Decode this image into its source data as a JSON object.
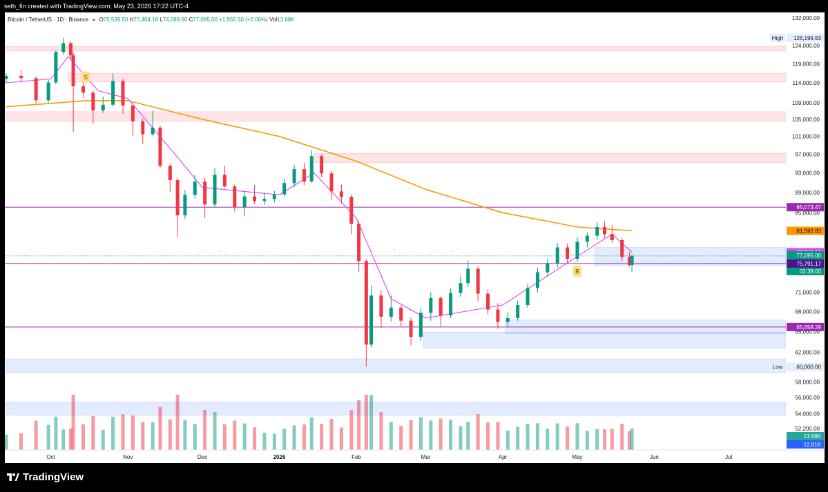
{
  "header": {
    "credit": "seth_fin created with TradingView.com, May 23, 2026 17:22 UTC-4"
  },
  "legend": {
    "symbol": "Bitcoin / TetherUS · 1D · Binance",
    "o_label": "O",
    "o": "75,539.50",
    "h_label": "H",
    "h": "77,404.18",
    "l_label": "L",
    "l": "74,289.60",
    "c_label": "C",
    "c": "77,095.00",
    "chg": "+1,555.50 (+2.06%)",
    "vol_label": "Vol",
    "vol": "13.68K"
  },
  "footer": {
    "brand": "TradingView"
  },
  "colors": {
    "up": "#089981",
    "down": "#f23645",
    "ma200": "#ff9800",
    "ma_fast": "#e040fb",
    "hline": "#9c27b0",
    "zone_red": "#f23645",
    "zone_blue": "#2962ff"
  },
  "chart_data": {
    "type": "candlestick",
    "symbol": "BTCUSDT",
    "interval": "1D",
    "y_axis_ticks": [
      132000,
      124000,
      119000,
      114000,
      109000,
      105000,
      101000,
      97000,
      93000,
      89000,
      85000,
      71000,
      68000,
      65000,
      62000,
      60000,
      58000,
      56000,
      54000,
      52200
    ],
    "y_axis_scale": "log",
    "x_axis_ticks": [
      {
        "label": "Oct",
        "date": "2025-10-01"
      },
      {
        "label": "Nov",
        "date": "2025-11-01"
      },
      {
        "label": "Dec",
        "date": "2025-12-01"
      },
      {
        "label": "2026",
        "date": "2026-01-01"
      },
      {
        "label": "Feb",
        "date": "2026-02-01"
      },
      {
        "label": "Mar",
        "date": "2026-03-01"
      },
      {
        "label": "Apr",
        "date": "2026-04-01"
      },
      {
        "label": "May",
        "date": "2026-05-01"
      },
      {
        "label": "Jun",
        "date": "2026-06-01"
      },
      {
        "label": "Jul",
        "date": "2026-07-01"
      }
    ],
    "price_labels": [
      {
        "text": "High",
        "value": 126199.63,
        "display": "126,199.63",
        "color": "#e3eefc",
        "fg": "#131722"
      },
      {
        "text": "",
        "value": 86073.47,
        "display": "86,073.47",
        "color": "#9c27b0",
        "fg": "#ffffff"
      },
      {
        "text": "",
        "value": 81592.83,
        "display": "81,592.83",
        "color": "#ff9800",
        "fg": "#000000"
      },
      {
        "text": "",
        "value": 77746.17,
        "display": "77,746.17",
        "color": "#e040fb",
        "fg": "#ffffff"
      },
      {
        "text": "",
        "value": 77095.0,
        "display": "77,095.00",
        "color": "#089981",
        "fg": "#ffffff"
      },
      {
        "text": "",
        "value": 77095.0,
        "display": "77,095.00",
        "color": "#089981",
        "fg": "#ffffff",
        "sub": "02:38:00"
      },
      {
        "text": "",
        "value": 75791.17,
        "display": "75,791.17",
        "color": "#4a148c",
        "fg": "#ffffff"
      },
      {
        "text": "",
        "value": 65658.29,
        "display": "65,658.29",
        "color": "#9c27b0",
        "fg": "#ffffff"
      },
      {
        "text": "Low",
        "value": 60000.0,
        "display": "60,000.00",
        "color": "#e3eefc",
        "fg": "#131722"
      }
    ],
    "volume_labels": [
      {
        "display": "13.68K",
        "color": "#26a69a"
      },
      {
        "display": "12.81K",
        "color": "#2962ff"
      }
    ],
    "horizontal_lines": [
      86073.47,
      75791.17,
      65658.29
    ],
    "zones": [
      {
        "color": "red",
        "start": "2025-09-13",
        "end": "2026-07-24",
        "low": 122500,
        "high": 123800
      },
      {
        "color": "red",
        "start": "2025-10-08",
        "end": "2026-07-24",
        "low": 114200,
        "high": 116500
      },
      {
        "color": "red",
        "start": "2025-09-13",
        "end": "2026-07-24",
        "low": 104500,
        "high": 106800
      },
      {
        "color": "red",
        "start": "2026-01-15",
        "end": "2026-07-24",
        "low": 95200,
        "high": 97200
      },
      {
        "color": "blue",
        "start": "2026-04-02",
        "end": "2026-07-24",
        "low": 64700,
        "high": 66700
      },
      {
        "color": "blue",
        "start": "2026-02-28",
        "end": "2026-07-24",
        "low": 62600,
        "high": 64900
      },
      {
        "color": "blue",
        "start": "2025-09-13",
        "end": "2026-07-24",
        "low": 59200,
        "high": 61100
      },
      {
        "color": "blue",
        "start": "2025-09-13",
        "end": "2026-07-24",
        "low": 53800,
        "high": 55400
      },
      {
        "color": "blue",
        "start": "2026-05-08",
        "end": "2026-07-24",
        "low": 75500,
        "high": 78600
      }
    ],
    "markers": [
      {
        "text": "S",
        "date": "2025-10-15",
        "value": 115500
      },
      {
        "text": "B",
        "date": "2026-05-01",
        "value": 74500
      }
    ],
    "ma_200": [
      {
        "date": "2025-09-13",
        "value": 108000
      },
      {
        "date": "2025-10-15",
        "value": 109500
      },
      {
        "date": "2025-11-01",
        "value": 109500
      },
      {
        "date": "2025-12-01",
        "value": 105000
      },
      {
        "date": "2026-01-01",
        "value": 101000
      },
      {
        "date": "2026-02-01",
        "value": 95500
      },
      {
        "date": "2026-03-01",
        "value": 89600
      },
      {
        "date": "2026-04-01",
        "value": 85000
      },
      {
        "date": "2026-05-01",
        "value": 82300
      },
      {
        "date": "2026-05-23",
        "value": 81592.83
      }
    ],
    "ma_fast": [
      {
        "date": "2025-09-13",
        "value": 114000
      },
      {
        "date": "2025-10-01",
        "value": 115000
      },
      {
        "date": "2025-10-08",
        "value": 121000
      },
      {
        "date": "2025-10-20",
        "value": 112000
      },
      {
        "date": "2025-11-01",
        "value": 110000
      },
      {
        "date": "2025-11-20",
        "value": 97000
      },
      {
        "date": "2025-12-01",
        "value": 90000
      },
      {
        "date": "2026-01-01",
        "value": 88500
      },
      {
        "date": "2026-01-15",
        "value": 93000
      },
      {
        "date": "2026-02-01",
        "value": 84000
      },
      {
        "date": "2026-02-15",
        "value": 70000
      },
      {
        "date": "2026-03-01",
        "value": 67000
      },
      {
        "date": "2026-04-01",
        "value": 69000
      },
      {
        "date": "2026-05-01",
        "value": 77000
      },
      {
        "date": "2026-05-15",
        "value": 81000
      },
      {
        "date": "2026-05-23",
        "value": 77746.17
      }
    ],
    "candles": [
      {
        "date": "2025-09-13",
        "open": 115000,
        "high": 116500,
        "low": 113800,
        "close": 115800
      },
      {
        "date": "2025-09-19",
        "open": 115800,
        "high": 117400,
        "low": 114200,
        "close": 115200
      },
      {
        "date": "2025-09-25",
        "open": 115200,
        "high": 115600,
        "low": 108800,
        "close": 109600
      },
      {
        "date": "2025-09-30",
        "open": 109600,
        "high": 114800,
        "low": 109000,
        "close": 114100
      },
      {
        "date": "2025-10-03",
        "open": 114100,
        "high": 122600,
        "low": 113600,
        "close": 122200
      },
      {
        "date": "2025-10-06",
        "open": 122200,
        "high": 126199,
        "low": 121500,
        "close": 124700
      },
      {
        "date": "2025-10-09",
        "open": 124700,
        "high": 125100,
        "low": 120200,
        "close": 121300
      },
      {
        "date": "2025-10-10",
        "open": 121300,
        "high": 122000,
        "low": 102000,
        "close": 113100
      },
      {
        "date": "2025-10-14",
        "open": 113100,
        "high": 116000,
        "low": 110200,
        "close": 111500
      },
      {
        "date": "2025-10-18",
        "open": 111500,
        "high": 112000,
        "low": 104000,
        "close": 107100
      },
      {
        "date": "2025-10-22",
        "open": 107100,
        "high": 110500,
        "low": 106500,
        "close": 108500
      },
      {
        "date": "2025-10-26",
        "open": 108500,
        "high": 116400,
        "low": 108000,
        "close": 114500
      },
      {
        "date": "2025-10-30",
        "open": 114500,
        "high": 115000,
        "low": 106300,
        "close": 108300
      },
      {
        "date": "2025-11-03",
        "open": 108300,
        "high": 109000,
        "low": 101000,
        "close": 104500
      },
      {
        "date": "2025-11-07",
        "open": 104500,
        "high": 105200,
        "low": 99300,
        "close": 101500
      },
      {
        "date": "2025-11-11",
        "open": 101500,
        "high": 107000,
        "low": 101000,
        "close": 103000
      },
      {
        "date": "2025-11-14",
        "open": 103000,
        "high": 103500,
        "low": 94000,
        "close": 94500
      },
      {
        "date": "2025-11-18",
        "open": 94500,
        "high": 95000,
        "low": 89000,
        "close": 91500
      },
      {
        "date": "2025-11-21",
        "open": 91500,
        "high": 92000,
        "low": 80500,
        "close": 84500
      },
      {
        "date": "2025-11-24",
        "open": 84500,
        "high": 89500,
        "low": 83800,
        "close": 88500
      },
      {
        "date": "2025-11-28",
        "open": 88500,
        "high": 92600,
        "low": 87800,
        "close": 91200
      },
      {
        "date": "2025-12-02",
        "open": 91200,
        "high": 92000,
        "low": 84000,
        "close": 86600
      },
      {
        "date": "2025-12-06",
        "open": 86600,
        "high": 94000,
        "low": 86000,
        "close": 92600
      },
      {
        "date": "2025-12-10",
        "open": 92600,
        "high": 94500,
        "low": 89800,
        "close": 90200
      },
      {
        "date": "2025-12-14",
        "open": 90200,
        "high": 90600,
        "low": 85200,
        "close": 86100
      },
      {
        "date": "2025-12-18",
        "open": 86100,
        "high": 89200,
        "low": 84400,
        "close": 88200
      },
      {
        "date": "2025-12-22",
        "open": 88200,
        "high": 90500,
        "low": 86700,
        "close": 87300
      },
      {
        "date": "2025-12-26",
        "open": 87300,
        "high": 89000,
        "low": 86500,
        "close": 87700
      },
      {
        "date": "2025-12-30",
        "open": 87700,
        "high": 89300,
        "low": 87000,
        "close": 88600
      },
      {
        "date": "2026-01-03",
        "open": 88600,
        "high": 91800,
        "low": 88200,
        "close": 90900
      },
      {
        "date": "2026-01-07",
        "open": 90900,
        "high": 94700,
        "low": 90100,
        "close": 93800
      },
      {
        "date": "2026-01-11",
        "open": 93800,
        "high": 95200,
        "low": 90500,
        "close": 91200
      },
      {
        "date": "2026-01-14",
        "open": 91200,
        "high": 97900,
        "low": 91000,
        "close": 96600
      },
      {
        "date": "2026-01-18",
        "open": 96600,
        "high": 97000,
        "low": 92100,
        "close": 92900
      },
      {
        "date": "2026-01-22",
        "open": 92900,
        "high": 93500,
        "low": 87500,
        "close": 89200
      },
      {
        "date": "2026-01-26",
        "open": 89200,
        "high": 90600,
        "low": 86800,
        "close": 88100
      },
      {
        "date": "2026-01-30",
        "open": 88100,
        "high": 88600,
        "low": 81000,
        "close": 82900
      },
      {
        "date": "2026-02-02",
        "open": 82900,
        "high": 83400,
        "low": 74300,
        "close": 76200
      },
      {
        "date": "2026-02-05",
        "open": 76200,
        "high": 76600,
        "low": 60000,
        "close": 63100
      },
      {
        "date": "2026-02-07",
        "open": 63100,
        "high": 72100,
        "low": 62700,
        "close": 70500
      },
      {
        "date": "2026-02-11",
        "open": 70500,
        "high": 71300,
        "low": 65500,
        "close": 67200
      },
      {
        "date": "2026-02-15",
        "open": 67200,
        "high": 70500,
        "low": 66500,
        "close": 68600
      },
      {
        "date": "2026-02-19",
        "open": 68600,
        "high": 69000,
        "low": 65800,
        "close": 66600
      },
      {
        "date": "2026-02-23",
        "open": 66600,
        "high": 67100,
        "low": 63000,
        "close": 64200
      },
      {
        "date": "2026-02-27",
        "open": 64200,
        "high": 68500,
        "low": 63600,
        "close": 67800
      },
      {
        "date": "2026-03-03",
        "open": 67800,
        "high": 71000,
        "low": 66600,
        "close": 70100
      },
      {
        "date": "2026-03-07",
        "open": 70100,
        "high": 70400,
        "low": 65800,
        "close": 67400
      },
      {
        "date": "2026-03-11",
        "open": 67400,
        "high": 71600,
        "low": 67000,
        "close": 70900
      },
      {
        "date": "2026-03-15",
        "open": 70900,
        "high": 73700,
        "low": 70300,
        "close": 72500
      },
      {
        "date": "2026-03-18",
        "open": 72500,
        "high": 76300,
        "low": 71900,
        "close": 74900
      },
      {
        "date": "2026-03-22",
        "open": 74900,
        "high": 75300,
        "low": 69600,
        "close": 70800
      },
      {
        "date": "2026-03-26",
        "open": 70800,
        "high": 71500,
        "low": 67600,
        "close": 68300
      },
      {
        "date": "2026-03-30",
        "open": 68300,
        "high": 69300,
        "low": 65400,
        "close": 66400
      },
      {
        "date": "2026-04-03",
        "open": 66400,
        "high": 67900,
        "low": 65600,
        "close": 67000
      },
      {
        "date": "2026-04-07",
        "open": 67000,
        "high": 69700,
        "low": 66600,
        "close": 69000
      },
      {
        "date": "2026-04-11",
        "open": 69000,
        "high": 72400,
        "low": 68600,
        "close": 71700
      },
      {
        "date": "2026-04-15",
        "open": 71700,
        "high": 75100,
        "low": 71000,
        "close": 74300
      },
      {
        "date": "2026-04-19",
        "open": 74300,
        "high": 76600,
        "low": 73600,
        "close": 75800
      },
      {
        "date": "2026-04-23",
        "open": 75800,
        "high": 79400,
        "low": 75100,
        "close": 78600
      },
      {
        "date": "2026-04-27",
        "open": 78600,
        "high": 79300,
        "low": 75800,
        "close": 76600
      },
      {
        "date": "2026-05-01",
        "open": 76600,
        "high": 80400,
        "low": 76000,
        "close": 79600
      },
      {
        "date": "2026-05-05",
        "open": 79600,
        "high": 81300,
        "low": 78600,
        "close": 80700
      },
      {
        "date": "2026-05-09",
        "open": 80700,
        "high": 83200,
        "low": 80000,
        "close": 82300
      },
      {
        "date": "2026-05-12",
        "open": 82300,
        "high": 83400,
        "low": 80300,
        "close": 81000
      },
      {
        "date": "2026-05-15",
        "open": 81000,
        "high": 82600,
        "low": 79400,
        "close": 79900
      },
      {
        "date": "2026-05-19",
        "open": 79900,
        "high": 80300,
        "low": 76200,
        "close": 76900
      },
      {
        "date": "2026-05-22",
        "open": 76900,
        "high": 77800,
        "low": 75300,
        "close": 75540
      },
      {
        "date": "2026-05-23",
        "open": 75539.5,
        "high": 77404.18,
        "low": 74289.6,
        "close": 77095
      }
    ]
  }
}
